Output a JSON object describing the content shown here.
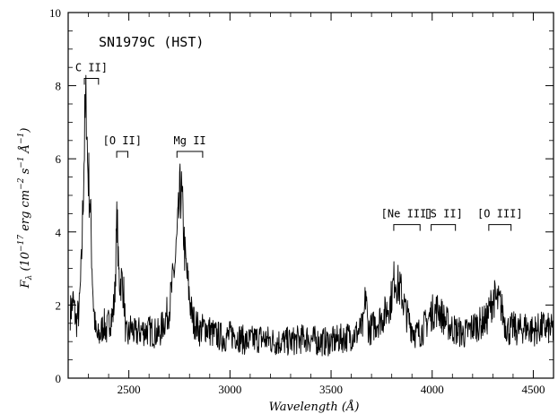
{
  "chart_data": {
    "type": "line",
    "title": "SN1979C (HST)",
    "xlabel": "Wavelength (Å)",
    "ylabel": "F_λ (10^-17 erg cm^-2 s^-1 Å^-1)",
    "ylabel_parts": {
      "f": "F",
      "lambda": "λ",
      "open": " (10",
      "exp1": "−17",
      "erg": " erg cm",
      "exp2": "−2",
      "s": " s",
      "exp3": "−1",
      "angstrom": " Å",
      "exp4": "−1",
      "close": ")"
    },
    "xlim": [
      2200,
      4600
    ],
    "ylim": [
      0,
      10
    ],
    "x_ticks": [
      2500,
      3000,
      3500,
      4000,
      4500
    ],
    "x_tick_labels": [
      "2500",
      "3000",
      "3500",
      "4000",
      "4500"
    ],
    "y_ticks": [
      0,
      2,
      4,
      6,
      8,
      10
    ],
    "y_tick_labels": [
      "0",
      "2",
      "4",
      "6",
      "8",
      "10"
    ],
    "grid": false,
    "series": [
      {
        "x": [
          2210,
          2225,
          2240,
          2255,
          2265,
          2275,
          2282,
          2290,
          2296,
          2302,
          2310,
          2318,
          2325,
          2335,
          2345,
          2360,
          2375,
          2390,
          2405,
          2420,
          2430,
          2437,
          2442,
          2448,
          2455,
          2465,
          2475,
          2485,
          2495,
          2510,
          2530,
          2560,
          2600,
          2650,
          2700,
          2730,
          2745,
          2755,
          2762,
          2770,
          2778,
          2788,
          2800,
          2815,
          2830,
          2850,
          2880,
          2920,
          2970,
          3020,
          3080,
          3150,
          3220,
          3300,
          3380,
          3440,
          3500,
          3560,
          3620,
          3660,
          3672,
          3680,
          3690,
          3720,
          3760,
          3795,
          3815,
          3825,
          3835,
          3850,
          3870,
          3890,
          3920,
          3950,
          3980,
          4000,
          4030,
          4060,
          4090,
          4120,
          4160,
          4200,
          4240,
          4270,
          4290,
          4305,
          4320,
          4340,
          4360,
          4380,
          4400,
          4420,
          4460,
          4500,
          4550,
          4600
        ],
        "y": [
          1.8,
          2.1,
          1.5,
          1.9,
          3.0,
          5.2,
          6.8,
          7.6,
          5.9,
          5.4,
          4.6,
          3.1,
          2.0,
          1.3,
          1.1,
          1.2,
          1.5,
          1.3,
          1.6,
          1.7,
          2.2,
          3.5,
          4.5,
          3.0,
          2.6,
          2.7,
          2.3,
          1.2,
          1.1,
          1.4,
          1.2,
          1.3,
          1.3,
          1.2,
          1.9,
          3.2,
          4.3,
          5.2,
          4.9,
          4.1,
          3.3,
          2.8,
          2.2,
          1.6,
          1.5,
          1.3,
          1.4,
          1.2,
          1.1,
          1.2,
          1.0,
          1.1,
          1.0,
          1.0,
          1.1,
          1.0,
          1.0,
          1.1,
          1.2,
          1.4,
          2.4,
          1.5,
          1.3,
          1.5,
          1.7,
          2.1,
          2.8,
          2.6,
          2.5,
          2.3,
          1.8,
          1.5,
          1.2,
          1.3,
          1.6,
          1.8,
          1.9,
          1.6,
          1.4,
          1.3,
          1.2,
          1.4,
          1.5,
          1.6,
          2.0,
          2.2,
          2.1,
          2.0,
          1.5,
          1.3,
          1.4,
          1.3,
          1.4,
          1.3,
          1.4,
          1.3
        ]
      }
    ],
    "annotations": [
      {
        "label": "C II]",
        "x_start": 2280,
        "x_end": 2350,
        "y": 8.2
      },
      {
        "label": "[O II]",
        "x_start": 2440,
        "x_end": 2495,
        "y": 6.2
      },
      {
        "label": "Mg II",
        "x_start": 2738,
        "x_end": 2865,
        "y": 6.2
      },
      {
        "label": "[Ne III]",
        "x_start": 3810,
        "x_end": 3940,
        "y": 4.2
      },
      {
        "label": "[S II]",
        "x_start": 3995,
        "x_end": 4115,
        "y": 4.2
      },
      {
        "label": "[O III]",
        "x_start": 4280,
        "x_end": 4390,
        "y": 4.2
      }
    ]
  }
}
